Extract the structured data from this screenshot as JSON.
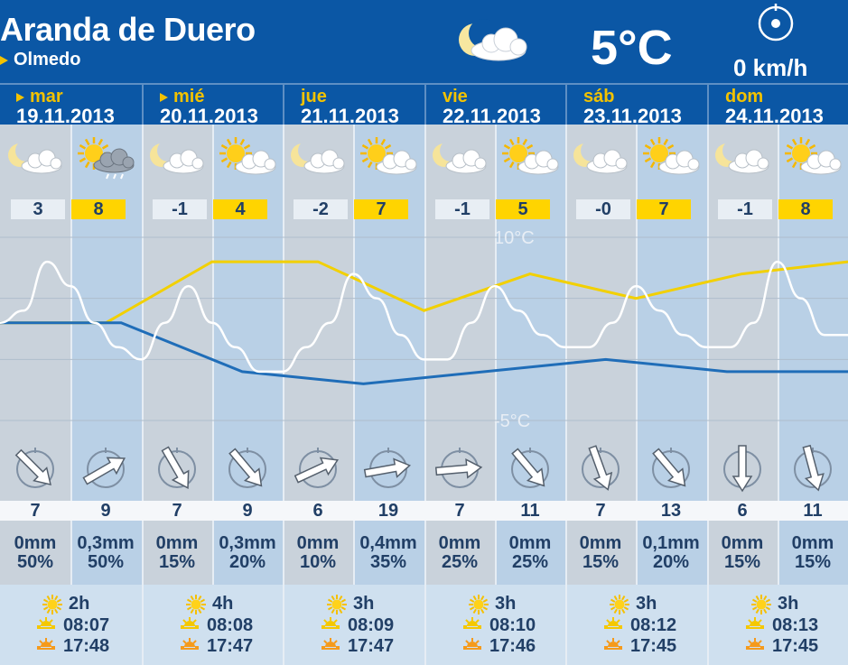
{
  "location": {
    "city": "Aranda de Duero",
    "area": "Olmedo"
  },
  "current": {
    "temp": "5°C",
    "wind": "0 km/h",
    "icon": "moon-cloud-icon",
    "wind_icon": "compass-icon"
  },
  "scale_labels": {
    "top": "10°C",
    "bottom": "-5°C"
  },
  "days": [
    {
      "name": "mar",
      "arrow": true,
      "date": "19.11.2013",
      "night": {
        "icon": "moon-cloud-icon",
        "temp": "3",
        "wind_dir": 135,
        "wind_speed": "7",
        "rain": "0mm",
        "prob": "50%"
      },
      "day": {
        "icon": "sun-cloud-rain-icon",
        "temp": "8",
        "wind_dir": 60,
        "wind_speed": "9",
        "rain": "0,3mm",
        "prob": "50%"
      },
      "sun_hours": "2h",
      "sunrise": "08:07",
      "sunset": "17:48"
    },
    {
      "name": "mié",
      "arrow": true,
      "date": "20.11.2013",
      "night": {
        "icon": "moon-cloud-icon",
        "temp": "-1",
        "wind_dir": 150,
        "wind_speed": "7",
        "rain": "0mm",
        "prob": "15%"
      },
      "day": {
        "icon": "sun-cloud-icon",
        "temp": "4",
        "wind_dir": 140,
        "wind_speed": "9",
        "rain": "0,3mm",
        "prob": "20%"
      },
      "sun_hours": "4h",
      "sunrise": "08:08",
      "sunset": "17:47"
    },
    {
      "name": "jue",
      "arrow": false,
      "date": "21.11.2013",
      "night": {
        "icon": "moon-cloud-icon",
        "temp": "-2",
        "wind_dir": 65,
        "wind_speed": "6",
        "rain": "0mm",
        "prob": "10%"
      },
      "day": {
        "icon": "sun-cloud-icon",
        "temp": "7",
        "wind_dir": 80,
        "wind_speed": "19",
        "rain": "0,4mm",
        "prob": "35%"
      },
      "sun_hours": "3h",
      "sunrise": "08:09",
      "sunset": "17:47"
    },
    {
      "name": "vie",
      "arrow": false,
      "date": "22.11.2013",
      "night": {
        "icon": "moon-cloud-icon",
        "temp": "-1",
        "wind_dir": 85,
        "wind_speed": "7",
        "rain": "0mm",
        "prob": "25%"
      },
      "day": {
        "icon": "sun-cloud-icon",
        "temp": "5",
        "wind_dir": 140,
        "wind_speed": "11",
        "rain": "0mm",
        "prob": "25%"
      },
      "sun_hours": "3h",
      "sunrise": "08:10",
      "sunset": "17:46"
    },
    {
      "name": "sáb",
      "arrow": false,
      "date": "23.11.2013",
      "night": {
        "icon": "moon-cloud-icon",
        "temp": "-0",
        "wind_dir": 160,
        "wind_speed": "7",
        "rain": "0mm",
        "prob": "15%"
      },
      "day": {
        "icon": "sun-cloud-icon",
        "temp": "7",
        "wind_dir": 140,
        "wind_speed": "13",
        "rain": "0,1mm",
        "prob": "20%"
      },
      "sun_hours": "3h",
      "sunrise": "08:12",
      "sunset": "17:45"
    },
    {
      "name": "dom",
      "arrow": false,
      "date": "24.11.2013",
      "night": {
        "icon": "moon-cloud-icon",
        "temp": "-1",
        "wind_dir": 180,
        "wind_speed": "6",
        "rain": "0mm",
        "prob": "15%"
      },
      "day": {
        "icon": "sun-cloud-icon",
        "temp": "8",
        "wind_dir": 165,
        "wind_speed": "11",
        "rain": "0mm",
        "prob": "15%"
      },
      "sun_hours": "3h",
      "sunrise": "08:13",
      "sunset": "17:45"
    }
  ],
  "chart_data": {
    "type": "line",
    "ylim": [
      -5,
      10
    ],
    "series": [
      {
        "points": [
          3,
          3,
          8,
          8,
          4,
          7,
          5,
          7,
          8
        ],
        "color": "#f2d000"
      },
      {
        "points": [
          3,
          3,
          -1,
          -2,
          -1,
          0,
          -1,
          -1
        ],
        "color": "#1f6db8"
      },
      {
        "points": [
          3,
          4,
          8,
          6,
          3,
          1,
          0,
          3,
          6,
          3,
          1,
          -1,
          -1,
          1,
          3,
          7,
          5,
          2,
          0,
          0,
          3,
          6,
          4,
          2,
          1,
          1,
          3,
          6,
          4,
          2,
          1,
          1,
          3,
          8,
          5,
          2,
          2
        ],
        "color": "#ffffff"
      }
    ],
    "colors": {
      "max": "#f2d000",
      "min": "#1f6db8",
      "hourly": "#ffffff"
    }
  }
}
